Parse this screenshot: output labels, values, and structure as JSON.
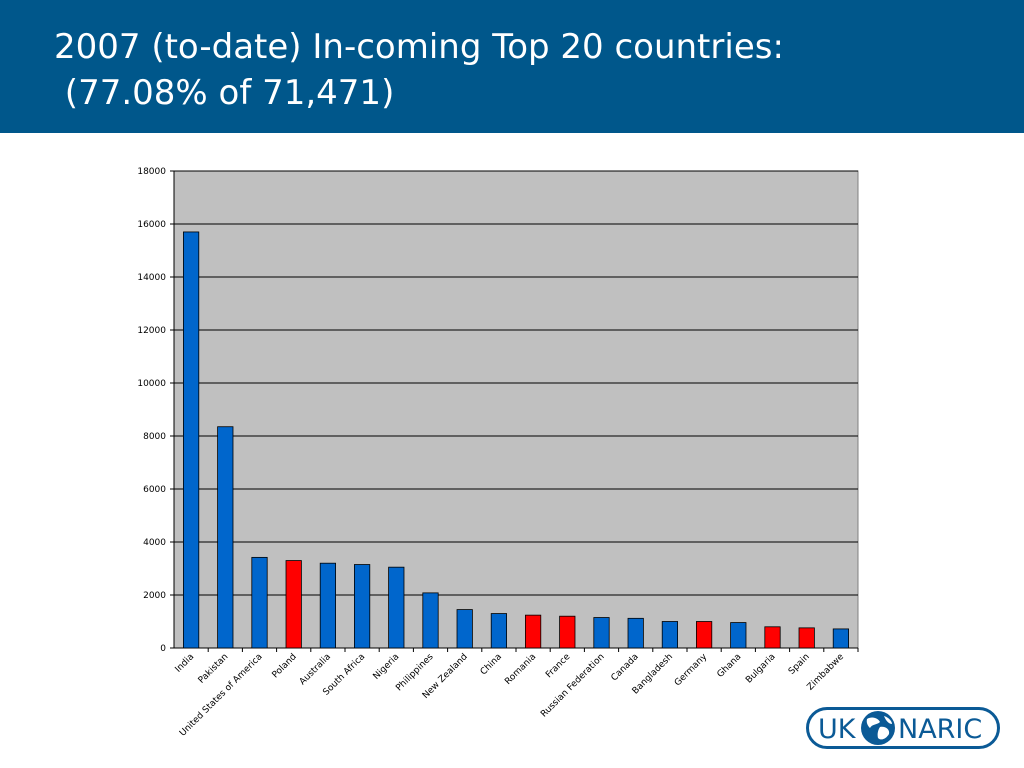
{
  "slide": {
    "title_line1": "2007 (to-date) In-coming Top 20 countries:",
    "title_line2": " (77.08% of 71,471)"
  },
  "logo": {
    "left_text": "UK",
    "right_text": "NARIC",
    "color": "#0b5a96"
  },
  "chart_data": {
    "type": "bar",
    "title": "",
    "xlabel": "",
    "ylabel": "",
    "ylim": [
      0,
      18000
    ],
    "yticks": [
      0,
      2000,
      4000,
      6000,
      8000,
      10000,
      12000,
      14000,
      16000,
      18000
    ],
    "grid": true,
    "legend": "none",
    "plot_background": "#c0c0c0",
    "categories": [
      "India",
      "Pakistan",
      "United States of America",
      "Poland",
      "Australia",
      "South Africa",
      "Nigeria",
      "Philippines",
      "New Zealand",
      "China",
      "Romania",
      "France",
      "Russian Federation",
      "Canada",
      "Bangladesh",
      "Germany",
      "Ghana",
      "Bulgaria",
      "Spain",
      "Zimbabwe"
    ],
    "values": [
      15700,
      8350,
      3420,
      3300,
      3200,
      3150,
      3050,
      2080,
      1450,
      1300,
      1240,
      1200,
      1150,
      1120,
      1000,
      1000,
      960,
      800,
      760,
      720
    ],
    "bar_colors": [
      "#0066cc",
      "#0066cc",
      "#0066cc",
      "#ff0000",
      "#0066cc",
      "#0066cc",
      "#0066cc",
      "#0066cc",
      "#0066cc",
      "#0066cc",
      "#ff0000",
      "#ff0000",
      "#0066cc",
      "#0066cc",
      "#0066cc",
      "#ff0000",
      "#0066cc",
      "#ff0000",
      "#ff0000",
      "#0066cc"
    ]
  }
}
